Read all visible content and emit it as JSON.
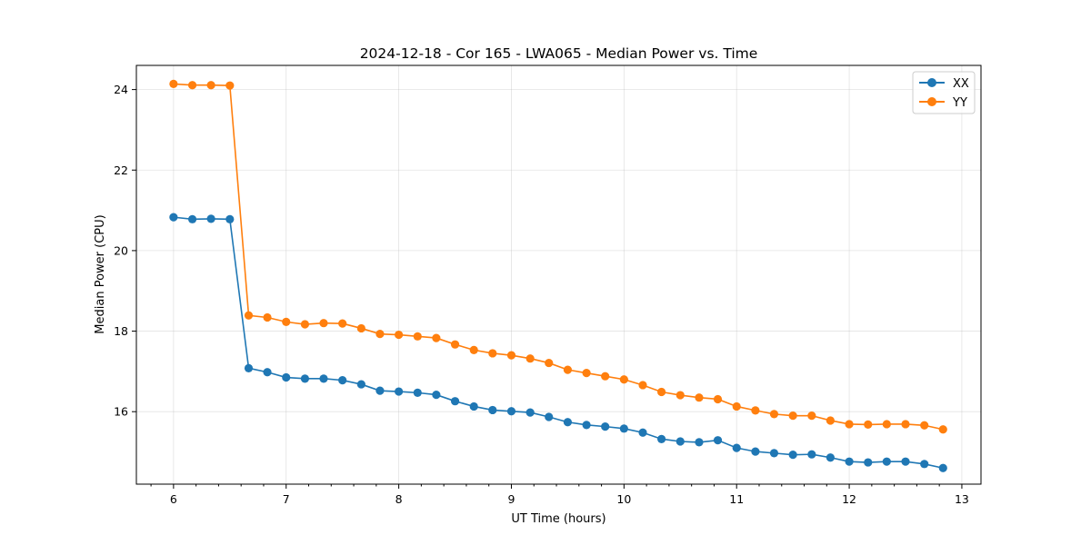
{
  "chart_data": {
    "type": "line",
    "title": "2024-12-18 - Cor 165 - LWA065 - Median Power vs. Time",
    "xlabel": "UT Time (hours)",
    "ylabel": "Median Power (CPU)",
    "xlim": [
      5.67,
      13.17
    ],
    "ylim": [
      14.2,
      24.6
    ],
    "xticks": [
      6,
      7,
      8,
      9,
      10,
      11,
      12,
      13
    ],
    "yticks": [
      16,
      18,
      20,
      22,
      24
    ],
    "grid": true,
    "legend_position": "top-right",
    "x": [
      6.0,
      6.167,
      6.333,
      6.5,
      6.667,
      6.833,
      7.0,
      7.167,
      7.333,
      7.5,
      7.667,
      7.833,
      8.0,
      8.167,
      8.333,
      8.5,
      8.667,
      8.833,
      9.0,
      9.167,
      9.333,
      9.5,
      9.667,
      9.833,
      10.0,
      10.167,
      10.333,
      10.5,
      10.667,
      10.833,
      11.0,
      11.167,
      11.333,
      11.5,
      11.667,
      11.833,
      12.0,
      12.167,
      12.333,
      12.5,
      12.667,
      12.833
    ],
    "series": [
      {
        "name": "XX",
        "color": "#1f77b4",
        "values": [
          20.83,
          20.78,
          20.79,
          20.78,
          17.08,
          16.98,
          16.85,
          16.82,
          16.82,
          16.78,
          16.68,
          16.52,
          16.5,
          16.47,
          16.42,
          16.26,
          16.13,
          16.04,
          16.01,
          15.98,
          15.87,
          15.74,
          15.67,
          15.63,
          15.58,
          15.48,
          15.32,
          15.26,
          15.24,
          15.29,
          15.1,
          15.01,
          14.97,
          14.93,
          14.94,
          14.86,
          14.76,
          14.74,
          14.76,
          14.76,
          14.7,
          14.6
        ]
      },
      {
        "name": "YY",
        "color": "#ff7f0e",
        "values": [
          24.14,
          24.11,
          24.11,
          24.1,
          18.39,
          18.34,
          18.23,
          18.17,
          18.2,
          18.19,
          18.07,
          17.93,
          17.91,
          17.87,
          17.83,
          17.67,
          17.53,
          17.45,
          17.4,
          17.32,
          17.21,
          17.04,
          16.96,
          16.88,
          16.8,
          16.66,
          16.49,
          16.41,
          16.35,
          16.31,
          16.13,
          16.03,
          15.94,
          15.9,
          15.9,
          15.78,
          15.69,
          15.68,
          15.69,
          15.69,
          15.66,
          15.56
        ]
      }
    ]
  }
}
